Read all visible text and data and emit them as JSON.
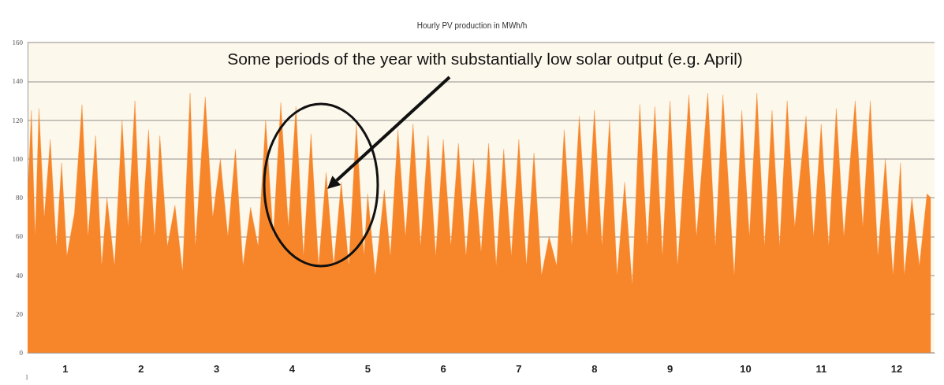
{
  "chart_data": {
    "type": "area",
    "title": "Hourly PV production in MWh/h",
    "x": [
      0,
      0.05,
      0.1,
      0.15,
      0.22,
      0.3,
      0.38,
      0.45,
      0.52,
      0.62,
      0.72,
      0.8,
      0.9,
      0.98,
      1.05,
      1.15,
      1.25,
      1.33,
      1.42,
      1.5,
      1.6,
      1.68,
      1.75,
      1.85,
      1.95,
      2.05,
      2.15,
      2.22,
      2.35,
      2.45,
      2.55,
      2.65,
      2.75,
      2.85,
      2.95,
      3.05,
      3.15,
      3.25,
      3.35,
      3.45,
      3.55,
      3.65,
      3.75,
      3.85,
      3.95,
      4.05,
      4.15,
      4.25,
      4.35,
      4.45,
      4.5,
      4.6,
      4.72,
      4.8,
      4.9,
      5.0,
      5.1,
      5.2,
      5.3,
      5.4,
      5.5,
      5.6,
      5.7,
      5.8,
      5.9,
      6.0,
      6.1,
      6.2,
      6.3,
      6.4,
      6.5,
      6.6,
      6.7,
      6.8,
      6.9,
      7.0,
      7.1,
      7.2,
      7.3,
      7.4,
      7.5,
      7.6,
      7.7,
      7.8,
      7.9,
      8.0,
      8.1,
      8.2,
      8.3,
      8.4,
      8.5,
      8.6,
      8.75,
      8.85,
      9.0,
      9.1,
      9.2,
      9.35,
      9.45,
      9.55,
      9.65,
      9.75,
      9.85,
      9.95,
      10.05,
      10.15,
      10.3,
      10.4,
      10.5,
      10.6,
      10.7,
      10.8,
      10.95,
      11.05,
      11.15,
      11.25,
      11.35,
      11.45,
      11.55,
      11.6,
      11.7,
      11.8,
      11.9,
      11.95
    ],
    "series": [
      {
        "color": "#f7862a",
        "values": [
          80,
          125,
          60,
          126,
          70,
          110,
          55,
          98,
          50,
          72,
          128,
          60,
          112,
          45,
          80,
          45,
          120,
          65,
          130,
          55,
          115,
          60,
          112,
          55,
          76,
          42,
          134,
          55,
          132,
          70,
          100,
          60,
          105,
          45,
          75,
          55,
          120,
          60,
          129,
          65,
          127,
          50,
          113,
          45,
          93,
          45,
          88,
          45,
          118,
          50,
          82,
          40,
          84,
          50,
          115,
          60,
          118,
          55,
          112,
          50,
          110,
          55,
          108,
          50,
          100,
          52,
          108,
          45,
          105,
          50,
          110,
          45,
          103,
          40,
          60,
          45,
          115,
          55,
          122,
          60,
          125,
          55,
          120,
          40,
          88,
          35,
          128,
          55,
          127,
          50,
          130,
          45,
          133,
          60,
          134,
          55,
          133,
          40,
          125,
          60,
          134,
          55,
          125,
          55,
          130,
          65,
          122,
          60,
          118,
          55,
          126,
          60,
          130,
          65,
          130,
          50,
          100,
          40,
          98,
          40,
          80,
          45,
          82,
          80
        ]
      }
    ],
    "xlim": [
      0,
      12
    ],
    "xticks": [
      {
        "value": 0.5,
        "label": "1"
      },
      {
        "value": 1.5,
        "label": "2"
      },
      {
        "value": 2.5,
        "label": "3"
      },
      {
        "value": 3.5,
        "label": "4"
      },
      {
        "value": 4.5,
        "label": "5"
      },
      {
        "value": 5.5,
        "label": "6"
      },
      {
        "value": 6.5,
        "label": "7"
      },
      {
        "value": 7.5,
        "label": "8"
      },
      {
        "value": 8.5,
        "label": "9"
      },
      {
        "value": 9.5,
        "label": "10"
      },
      {
        "value": 10.5,
        "label": "11"
      },
      {
        "value": 11.5,
        "label": "12"
      }
    ],
    "ylim": [
      0,
      160
    ],
    "yticks": [
      0,
      20,
      40,
      60,
      80,
      100,
      120,
      140,
      160
    ],
    "grid": "y",
    "marker": "none",
    "annotations": [
      "Some periods of the year with substantially low solar output (e.g. April)",
      "1"
    ]
  }
}
